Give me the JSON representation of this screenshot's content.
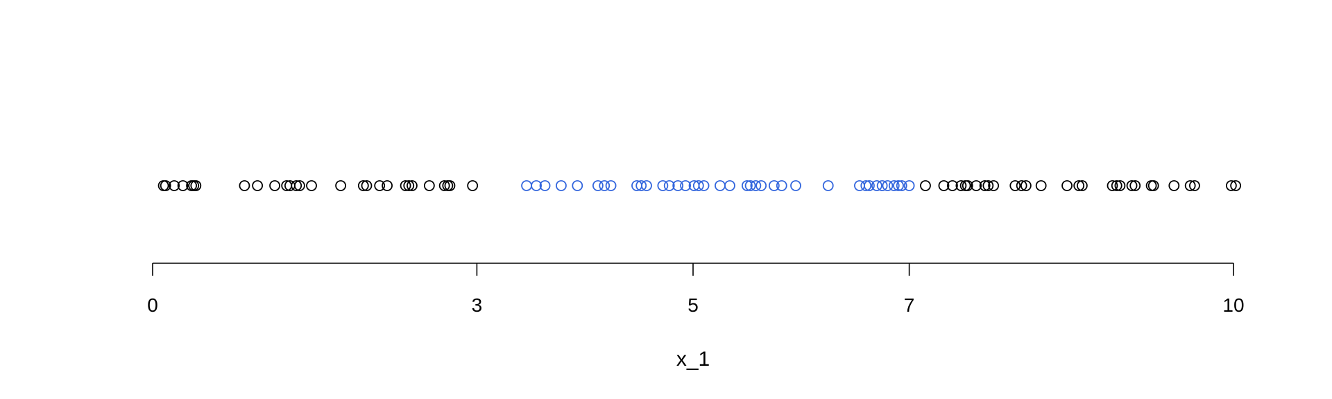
{
  "chart_data": {
    "type": "scatter",
    "title": "",
    "xlabel": "x_1",
    "ylabel": "",
    "xlim": [
      0,
      10
    ],
    "x_ticks": [
      0,
      3,
      5,
      7,
      10
    ],
    "grid": false,
    "colors": {
      "outside": "#000000",
      "inside": "#3366dd"
    },
    "series": [
      {
        "color": "#000000",
        "x": [
          0.1,
          0.12,
          0.2,
          0.28,
          0.36,
          0.38,
          0.4,
          0.85,
          0.97,
          1.13,
          1.24,
          1.27,
          1.33,
          1.36,
          1.47,
          1.74,
          1.95,
          1.98,
          2.1,
          2.17,
          2.34,
          2.37,
          2.4,
          2.56,
          2.7,
          2.73,
          2.75,
          2.96,
          7.15,
          7.32,
          7.4,
          7.48,
          7.52,
          7.54,
          7.62,
          7.7,
          7.73,
          7.78,
          7.98,
          8.04,
          8.08,
          8.22,
          8.46,
          8.57,
          8.6,
          8.88,
          8.92,
          8.95,
          9.06,
          9.09,
          9.24,
          9.26,
          9.45,
          9.6,
          9.64,
          9.98,
          10.02
        ]
      },
      {
        "color": "#3366dd",
        "x": [
          3.46,
          3.55,
          3.63,
          3.78,
          3.93,
          4.12,
          4.18,
          4.24,
          4.48,
          4.52,
          4.57,
          4.72,
          4.78,
          4.86,
          4.93,
          5.01,
          5.05,
          5.1,
          5.25,
          5.34,
          5.5,
          5.53,
          5.58,
          5.63,
          5.75,
          5.82,
          5.95,
          6.25,
          6.54,
          6.6,
          6.63,
          6.7,
          6.75,
          6.8,
          6.86,
          6.9,
          6.93,
          7.0
        ]
      }
    ]
  }
}
